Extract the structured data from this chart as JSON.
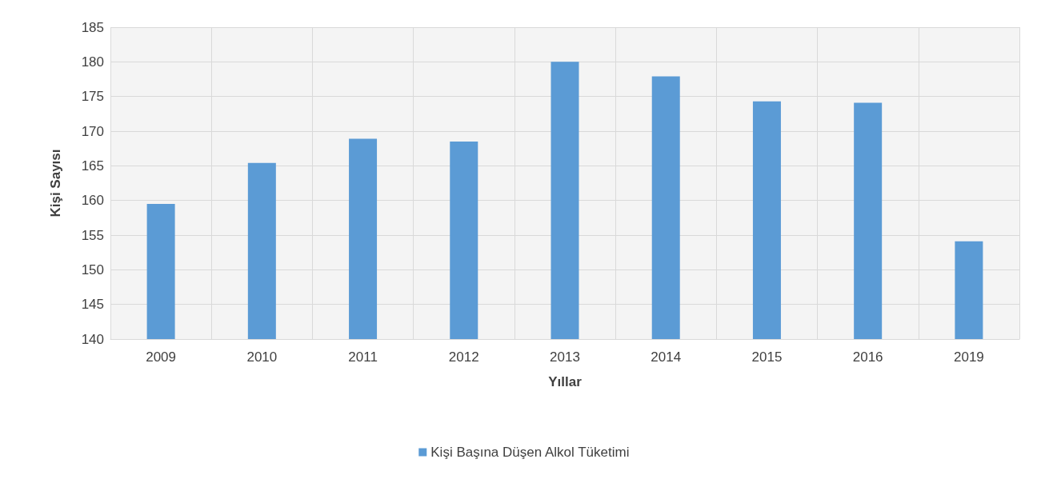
{
  "chart_data": {
    "type": "bar",
    "xlabel": "Yıllar",
    "ylabel": "Kişi Sayısı",
    "categories": [
      "2009",
      "2010",
      "2011",
      "2012",
      "2013",
      "2014",
      "2015",
      "2016",
      "2019"
    ],
    "series": [
      {
        "name": "Kişi Başına Düşen Alkol Tüketimi",
        "color": "#5b9bd5",
        "values": [
          159.5,
          165.4,
          168.9,
          168.5,
          180,
          177.9,
          174.3,
          174.1,
          154.1
        ]
      }
    ],
    "ylim": [
      140,
      185
    ],
    "yticks": [
      140,
      145,
      150,
      155,
      160,
      165,
      170,
      175,
      180,
      185
    ],
    "grid": true,
    "legend": "bottom"
  }
}
